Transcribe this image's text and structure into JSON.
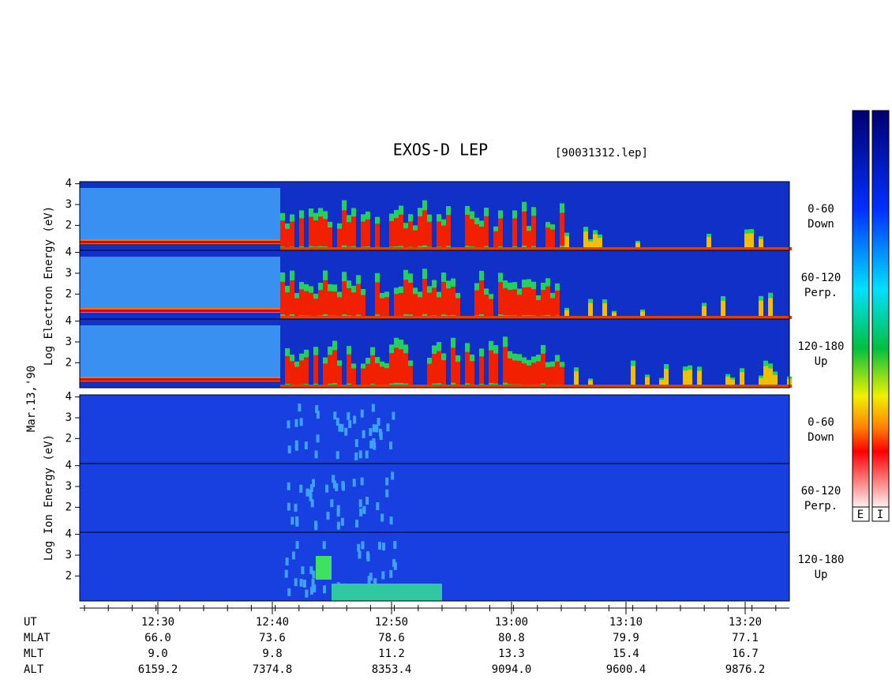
{
  "title": "EXOS-D LEP",
  "file": "[90031312.lep]",
  "date": "Mar.13,'90",
  "electron_axis_label": "Log Electron Energy (eV)",
  "ion_axis_label": "Log Ion Energy (eV)",
  "energy_ticks": [
    2,
    3,
    4
  ],
  "panels": [
    {
      "angle": "0-60",
      "direction": "Down"
    },
    {
      "angle": "60-120",
      "direction": "Perp."
    },
    {
      "angle": "120-180",
      "direction": "Up"
    }
  ],
  "ephemeris": {
    "rows": [
      {
        "name": "UT",
        "values": [
          "12:30",
          "12:40",
          "12:50",
          "13:00",
          "13:10",
          "13:20"
        ]
      },
      {
        "name": "MLAT",
        "values": [
          "66.0",
          "73.6",
          "78.6",
          "80.8",
          "79.9",
          "77.1"
        ]
      },
      {
        "name": "MLT",
        "values": [
          "9.0",
          "9.8",
          "11.2",
          "13.3",
          "15.4",
          "16.7"
        ]
      },
      {
        "name": "ALT",
        "values": [
          "6159.2",
          "7374.8",
          "8353.4",
          "9094.0",
          "9600.4",
          "9876.2"
        ]
      }
    ]
  },
  "colorbar_labels": [
    "E",
    "I"
  ]
}
